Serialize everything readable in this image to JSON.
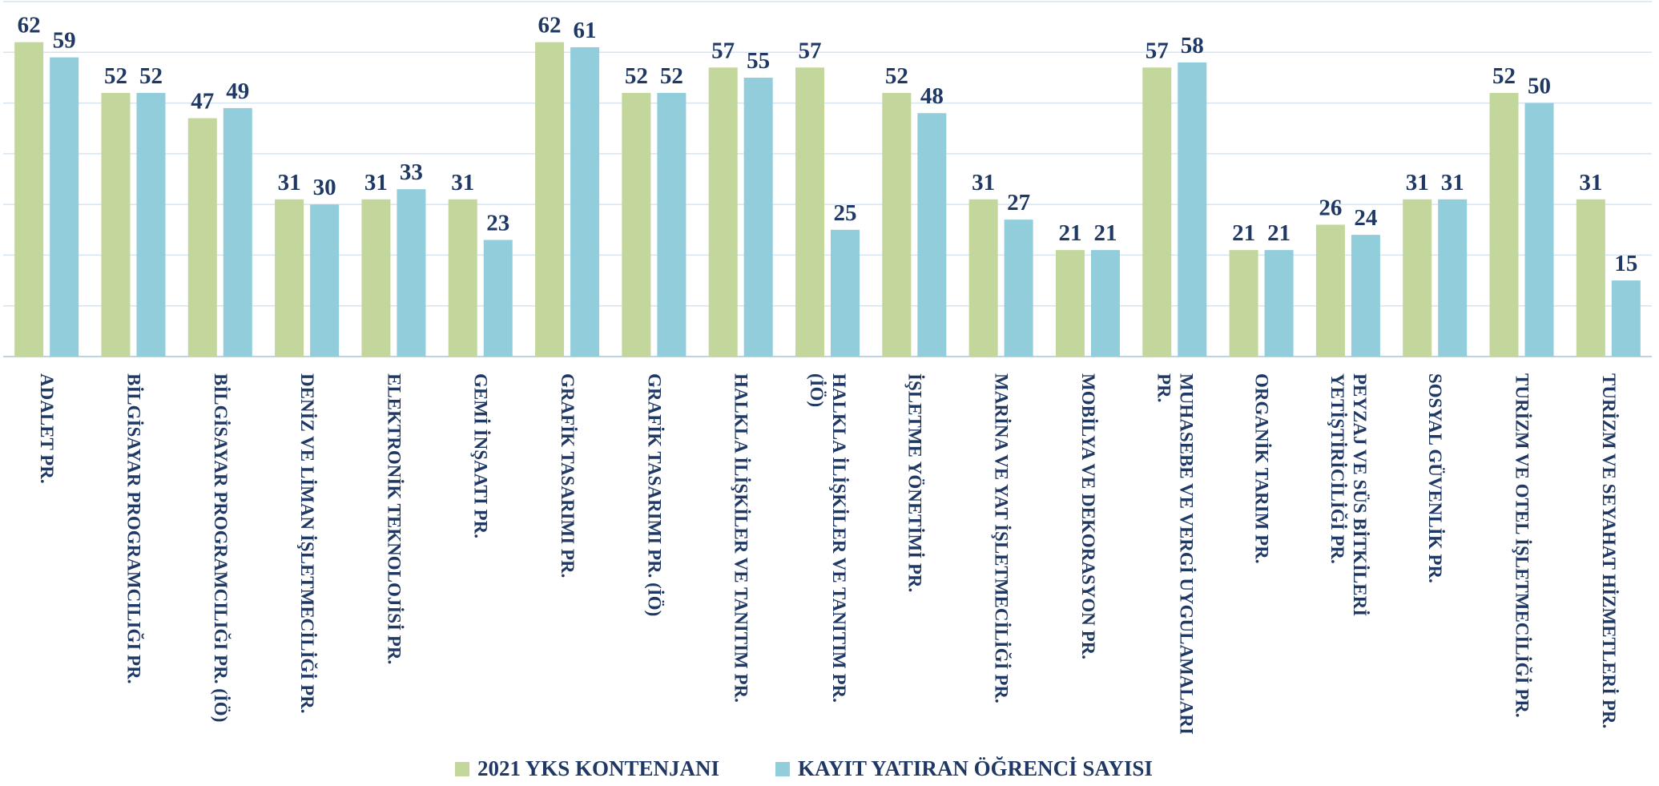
{
  "chart_data": {
    "type": "bar",
    "categories": [
      "ADALET PR.",
      "BİLGİSAYAR PROGRAMCILIĞI PR.",
      "BİLGİSAYAR PROGRAMCILIĞI PR. (İÖ)",
      "DENİZ VE LİMAN İŞLETMECİLİĞİ PR.",
      "ELEKTRONİK TEKNOLOJİSİ PR.",
      "GEMİ İNŞAATI PR.",
      "GRAFİK TASARIMI PR.",
      "GRAFİK TASARIMI PR. (İÖ)",
      "HALKLA İLİŞKİLER VE TANITIM PR.",
      "HALKLA İLİŞKİLER VE TANITIM PR. (İÖ)",
      "İŞLETME YÖNETİMİ PR.",
      "MARİNA VE YAT İŞLETMECİLİĞİ PR.",
      "MOBİLYA VE DEKORASYON PR.",
      "MUHASEBE VE VERGİ UYGULAMALARI PR.",
      "ORGANİK TARIM PR.",
      "PEYZAJ VE SÜS BİTKİLERİ YETİŞTİRİCİLİĞİ PR.",
      "SOSYAL GÜVENLİK PR.",
      "TURİZM VE OTEL İŞLETMECİLİĞİ PR.",
      "TURİZM VE SEYAHAT HİZMETLERİ PR."
    ],
    "series": [
      {
        "name": "2021 YKS KONTENJANI",
        "color": "#c3d69b",
        "values": [
          62,
          52,
          47,
          31,
          31,
          31,
          62,
          52,
          57,
          57,
          52,
          31,
          21,
          57,
          21,
          26,
          31,
          52,
          31
        ]
      },
      {
        "name": "KAYIT YATIRAN ÖĞRENCİ SAYISI",
        "color": "#92cddc",
        "values": [
          59,
          52,
          49,
          30,
          33,
          23,
          61,
          52,
          55,
          25,
          48,
          27,
          21,
          58,
          21,
          24,
          31,
          50,
          15
        ]
      }
    ],
    "ylim": [
      0,
      70
    ],
    "yticks": [
      0,
      10,
      20,
      30,
      40,
      50,
      60,
      70
    ],
    "grid": true,
    "legend": "bottom"
  }
}
